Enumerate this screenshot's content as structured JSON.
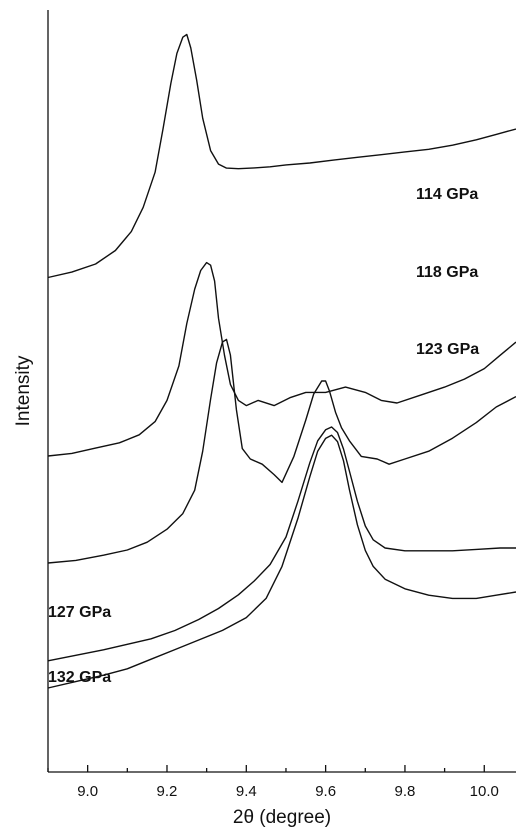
{
  "chart_data": {
    "type": "line",
    "title": "",
    "xlabel": "2θ (degree)",
    "ylabel": "Intensity",
    "xlim": [
      8.9,
      10.08
    ],
    "x_ticks": [
      "9.0",
      "9.2",
      "9.4",
      "9.6",
      "9.8",
      "10.0"
    ],
    "x_tick_values": [
      9.0,
      9.2,
      9.4,
      9.6,
      9.8,
      10.0
    ],
    "y_ticks_shown": false,
    "grid": false,
    "legend": "none (each trace labeled directly)",
    "series": [
      {
        "name": "114 GPa",
        "color": "#111111",
        "x": [
          8.9,
          8.96,
          9.02,
          9.07,
          9.11,
          9.14,
          9.17,
          9.19,
          9.21,
          9.225,
          9.24,
          9.25,
          9.26,
          9.275,
          9.29,
          9.31,
          9.33,
          9.35,
          9.38,
          9.42,
          9.46,
          9.5,
          9.56,
          9.62,
          9.68,
          9.74,
          9.8,
          9.86,
          9.92,
          9.98,
          10.03,
          10.08
        ],
        "y": [
          0.15,
          0.17,
          0.2,
          0.25,
          0.32,
          0.41,
          0.54,
          0.7,
          0.87,
          0.98,
          1.04,
          1.05,
          1.0,
          0.88,
          0.74,
          0.62,
          0.57,
          0.555,
          0.553,
          0.556,
          0.56,
          0.567,
          0.574,
          0.585,
          0.595,
          0.605,
          0.615,
          0.625,
          0.64,
          0.66,
          0.68,
          0.7
        ]
      },
      {
        "name": "118 GPa",
        "color": "#111111",
        "x": [
          8.9,
          8.96,
          9.02,
          9.08,
          9.13,
          9.17,
          9.2,
          9.23,
          9.25,
          9.27,
          9.285,
          9.3,
          9.31,
          9.32,
          9.33,
          9.345,
          9.36,
          9.38,
          9.4,
          9.43,
          9.47,
          9.51,
          9.55,
          9.6,
          9.65,
          9.7,
          9.74,
          9.78,
          9.84,
          9.9,
          9.95,
          10.0,
          10.04,
          10.08
        ],
        "y": [
          0.0,
          0.01,
          0.03,
          0.05,
          0.08,
          0.13,
          0.21,
          0.34,
          0.5,
          0.63,
          0.7,
          0.73,
          0.72,
          0.66,
          0.52,
          0.38,
          0.27,
          0.21,
          0.19,
          0.21,
          0.19,
          0.22,
          0.24,
          0.24,
          0.26,
          0.24,
          0.21,
          0.2,
          0.23,
          0.26,
          0.29,
          0.33,
          0.38,
          0.43
        ]
      },
      {
        "name": "123 GPa",
        "color": "#111111",
        "x": [
          8.9,
          8.97,
          9.04,
          9.1,
          9.15,
          9.2,
          9.24,
          9.27,
          9.29,
          9.31,
          9.325,
          9.34,
          9.35,
          9.36,
          9.375,
          9.39,
          9.41,
          9.44,
          9.47,
          9.49,
          9.52,
          9.55,
          9.57,
          9.59,
          9.6,
          9.61,
          9.625,
          9.64,
          9.66,
          9.69,
          9.73,
          9.76,
          9.8,
          9.86,
          9.92,
          9.98,
          10.03,
          10.08
        ],
        "y": [
          -0.1,
          -0.09,
          -0.07,
          -0.05,
          -0.02,
          0.03,
          0.09,
          0.18,
          0.33,
          0.53,
          0.67,
          0.75,
          0.76,
          0.7,
          0.49,
          0.34,
          0.3,
          0.28,
          0.24,
          0.21,
          0.31,
          0.45,
          0.55,
          0.6,
          0.6,
          0.56,
          0.48,
          0.42,
          0.37,
          0.31,
          0.3,
          0.28,
          0.3,
          0.33,
          0.38,
          0.44,
          0.5,
          0.54
        ]
      },
      {
        "name": "127 GPa",
        "color": "#111111",
        "x": [
          8.9,
          8.97,
          9.04,
          9.1,
          9.16,
          9.22,
          9.28,
          9.33,
          9.38,
          9.42,
          9.46,
          9.5,
          9.53,
          9.56,
          9.58,
          9.6,
          9.615,
          9.63,
          9.645,
          9.66,
          9.68,
          9.7,
          9.72,
          9.75,
          9.8,
          9.86,
          9.92,
          9.98,
          10.04,
          10.08
        ],
        "y": [
          -0.05,
          -0.03,
          -0.01,
          0.01,
          0.03,
          0.06,
          0.1,
          0.14,
          0.19,
          0.24,
          0.3,
          0.4,
          0.53,
          0.67,
          0.75,
          0.79,
          0.8,
          0.78,
          0.72,
          0.64,
          0.53,
          0.44,
          0.39,
          0.36,
          0.35,
          0.35,
          0.35,
          0.355,
          0.36,
          0.36
        ]
      },
      {
        "name": "132 GPa",
        "color": "#111111",
        "x": [
          8.9,
          8.97,
          9.04,
          9.1,
          9.16,
          9.22,
          9.28,
          9.34,
          9.4,
          9.45,
          9.49,
          9.53,
          9.56,
          9.58,
          9.6,
          9.615,
          9.63,
          9.645,
          9.66,
          9.68,
          9.7,
          9.72,
          9.75,
          9.8,
          9.86,
          9.92,
          9.98,
          10.03,
          10.08
        ],
        "y": [
          0.0,
          0.02,
          0.04,
          0.06,
          0.09,
          0.12,
          0.15,
          0.18,
          0.22,
          0.28,
          0.38,
          0.53,
          0.66,
          0.74,
          0.78,
          0.79,
          0.77,
          0.71,
          0.62,
          0.51,
          0.43,
          0.38,
          0.34,
          0.31,
          0.29,
          0.28,
          0.28,
          0.29,
          0.3
        ]
      }
    ],
    "series_labels": [
      "114 GPa",
      "118 GPa",
      "123 GPa",
      "127 GPa",
      "132 GPa"
    ]
  }
}
